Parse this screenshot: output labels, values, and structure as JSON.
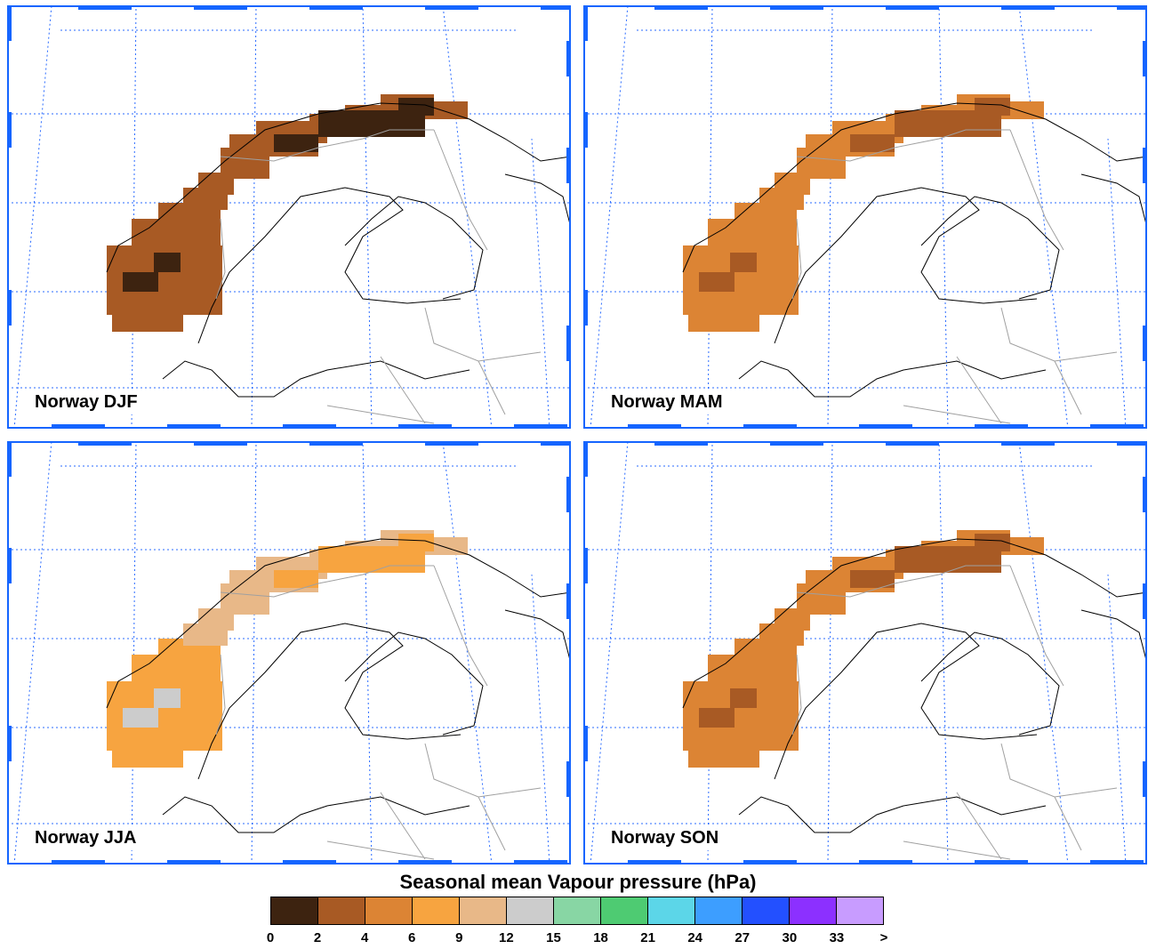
{
  "title": "Seasonal mean Vapour pressure (hPa)",
  "panels": [
    {
      "label": "Norway DJF",
      "season": "DJF"
    },
    {
      "label": "Norway MAM",
      "season": "MAM"
    },
    {
      "label": "Norway JJA",
      "season": "JJA"
    },
    {
      "label": "Norway SON",
      "season": "SON"
    }
  ],
  "colors": {
    "map_frame": "#1565ff",
    "gridlines": "#2a6bff",
    "coastline": "#000000",
    "borders": "#a0a0a0"
  },
  "legend": {
    "ticks": [
      "0",
      "2",
      "4",
      "6",
      "9",
      "12",
      "15",
      "18",
      "21",
      "24",
      "27",
      "30",
      "33",
      ">"
    ],
    "colors": [
      "#3d2310",
      "#a85a24",
      "#dc8434",
      "#f7a440",
      "#e8b888",
      "#cccccc",
      "#88d6a4",
      "#4ecb72",
      "#5cd6e8",
      "#3d9eff",
      "#2350ff",
      "#8c30ff",
      "#c89cff"
    ]
  }
}
